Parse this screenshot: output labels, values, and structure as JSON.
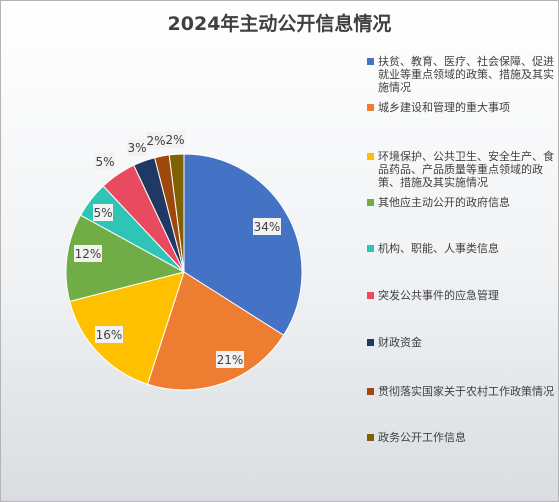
{
  "chart_data": {
    "type": "pie",
    "title": "2024年主动公开信息情况",
    "legend_position": "right",
    "slices": [
      {
        "label": "扶贫、教育、医疗、社会保障、促进就业等重点领域的政策、措施及其实施情况",
        "value": 34,
        "display": "34%",
        "color": "#4472C4"
      },
      {
        "label": "城乡建设和管理的重大事项",
        "value": 21,
        "display": "21%",
        "color": "#ED7D31"
      },
      {
        "label": "环境保护、公共卫生、安全生产、食品药品、产品质量等重点领域的政策、措施及其实施情况",
        "value": 16,
        "display": "16%",
        "color": "#FFC000"
      },
      {
        "label": "其他应主动公开的政府信息",
        "value": 12,
        "display": "12%",
        "color": "#70AD47"
      },
      {
        "label": "机构、职能、人事类信息",
        "value": 5,
        "display": "5%",
        "color": "#2EC4B6"
      },
      {
        "label": "突发公共事件的应急管理",
        "value": 5,
        "display": "5%",
        "color": "#E84A5F"
      },
      {
        "label": "财政资金",
        "value": 3,
        "display": "3%",
        "color": "#203864"
      },
      {
        "label": "贯彻落实国家关于农村工作政策情况",
        "value": 2,
        "display": "2%",
        "color": "#9E480E"
      },
      {
        "label": "政务公开工作信息",
        "value": 2,
        "display": "2%",
        "color": "#806000"
      }
    ]
  }
}
